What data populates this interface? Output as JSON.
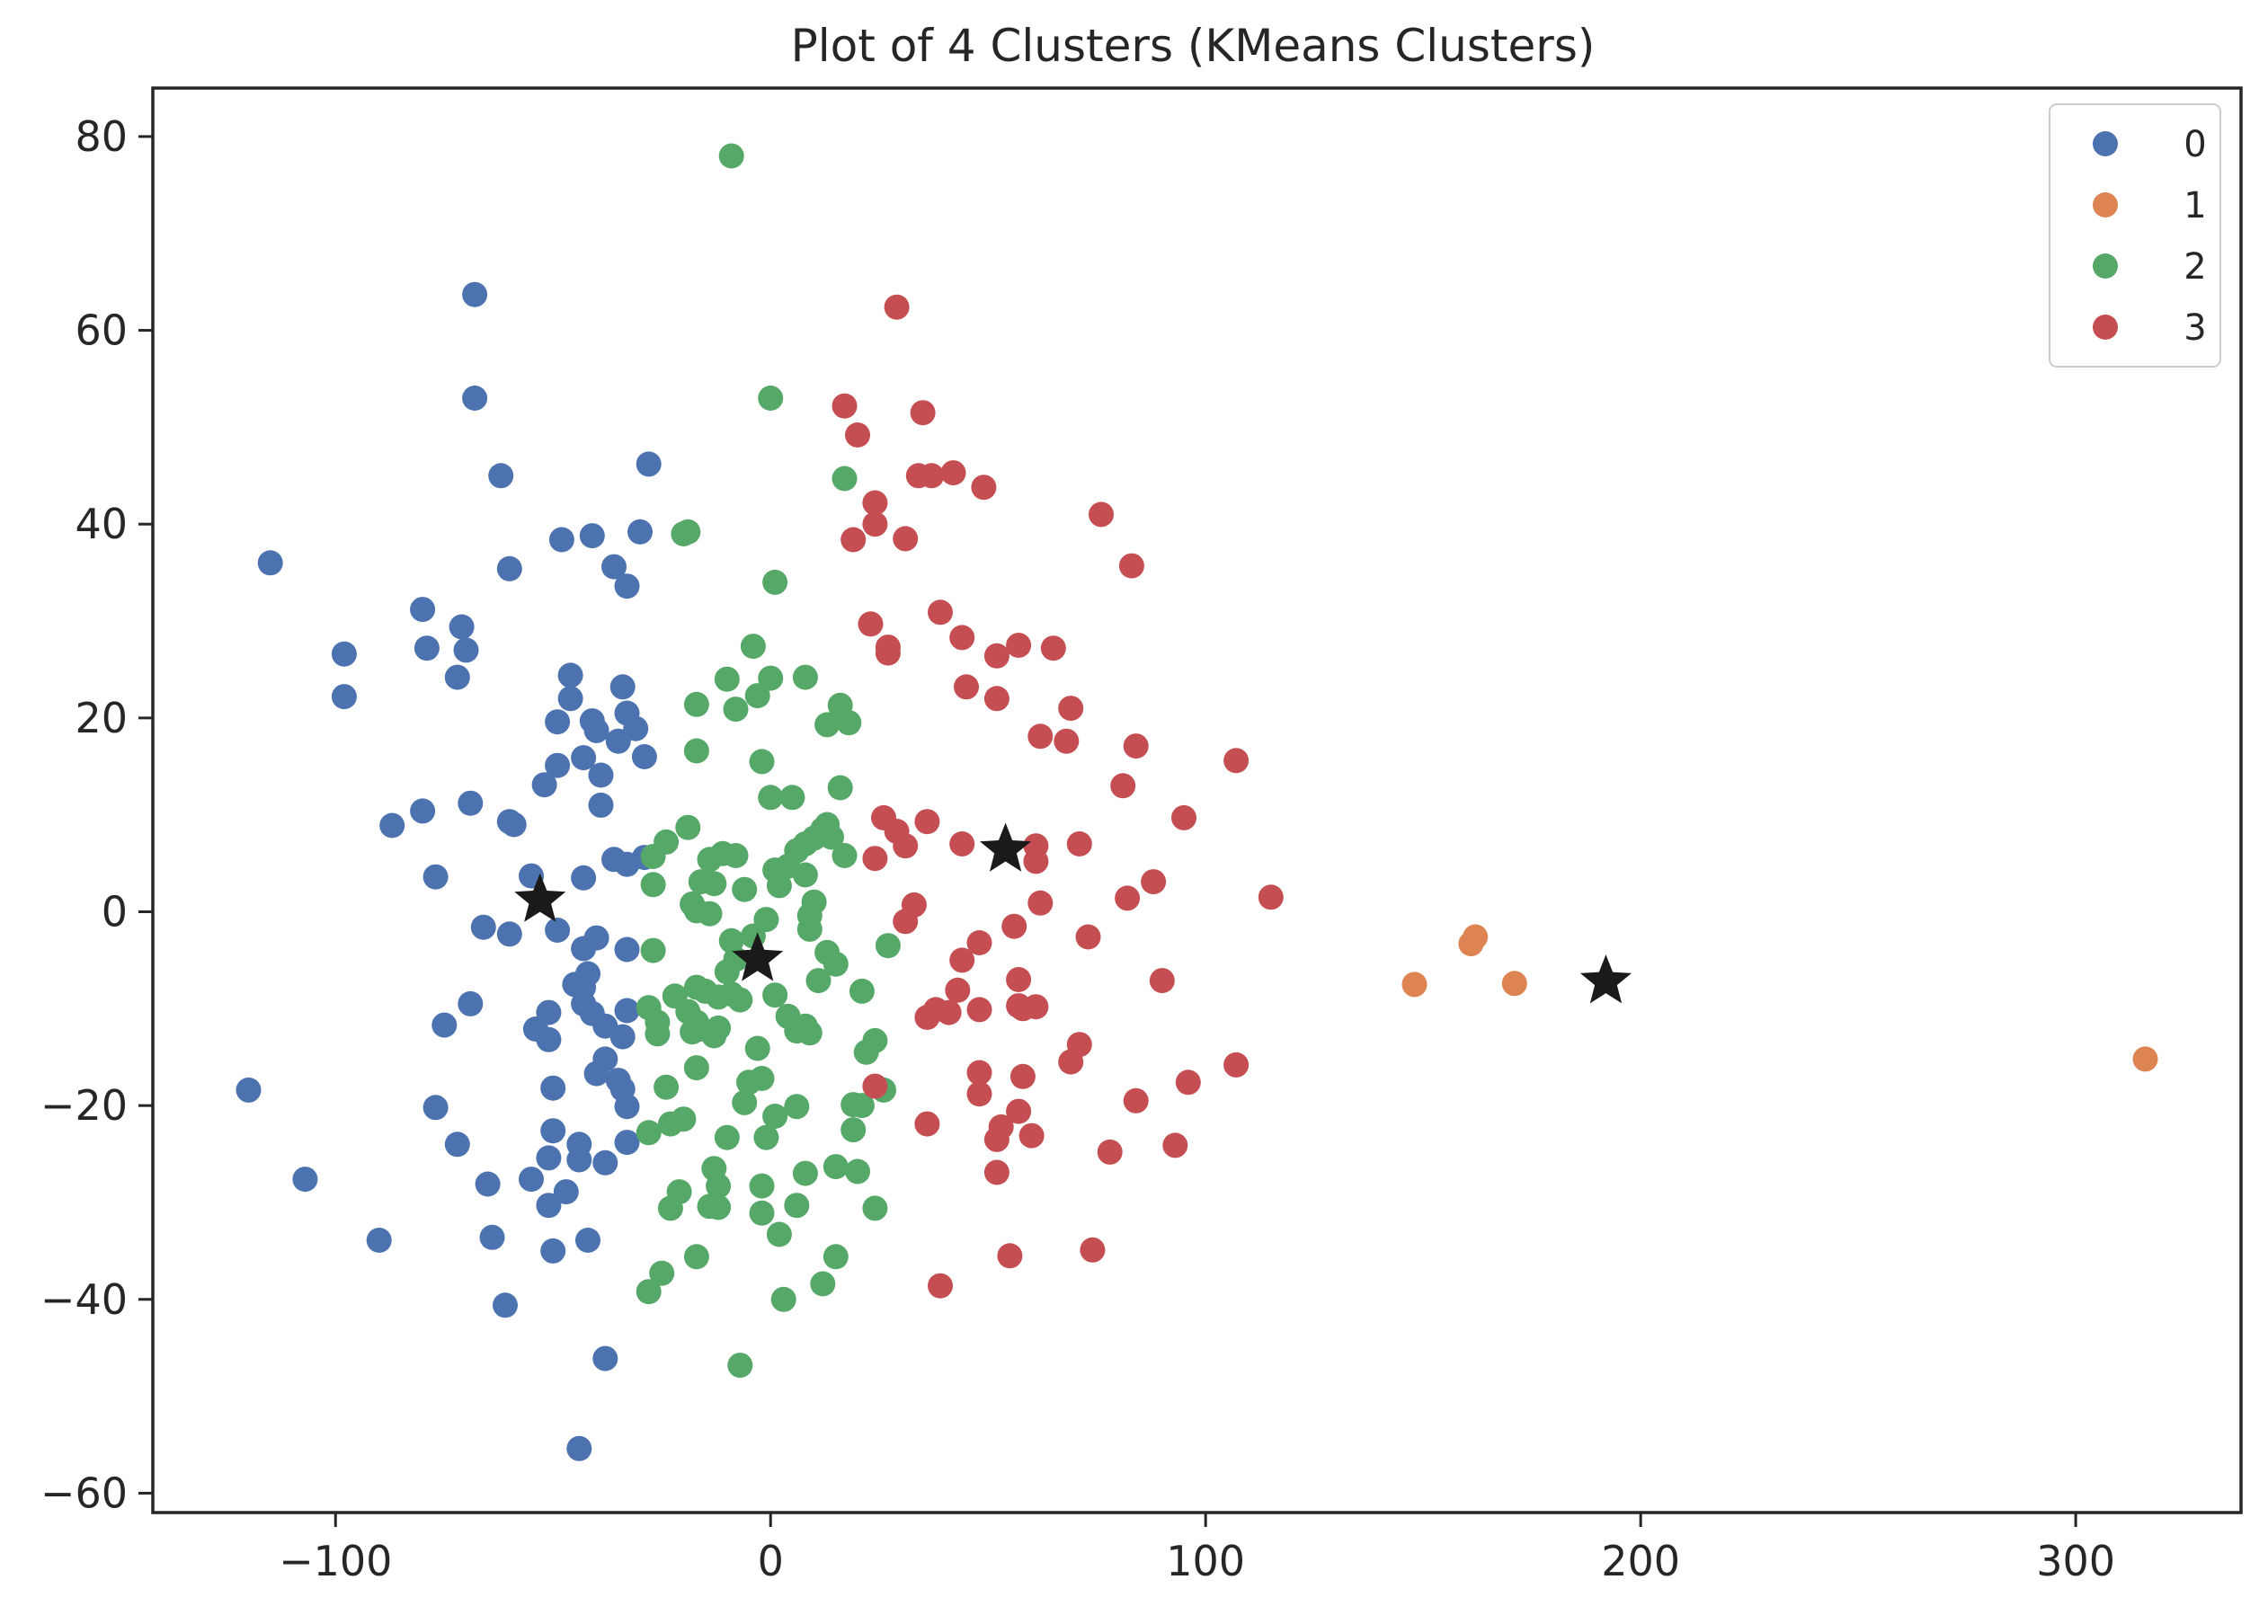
{
  "chart_data": {
    "type": "scatter",
    "title": "Plot of 4 Clusters (KMeans Clusters)",
    "xlabel": "",
    "ylabel": "",
    "xlim": [
      -142,
      338
    ],
    "ylim": [
      -62,
      85
    ],
    "xticks": [
      -100,
      0,
      100,
      200,
      300
    ],
    "yticks": [
      -60,
      -40,
      -20,
      0,
      20,
      40,
      60,
      80
    ],
    "xtick_labels": [
      "−100",
      "0",
      "100",
      "200",
      "300"
    ],
    "ytick_labels": [
      "−60",
      "−40",
      "−20",
      "0",
      "20",
      "40",
      "60",
      "80"
    ],
    "grid": false,
    "legend_position": "top-right",
    "series": [
      {
        "name": "0",
        "color": "#4c72b0",
        "points": [
          [
            -115,
            36
          ],
          [
            -68,
            63.7
          ],
          [
            -68,
            53
          ],
          [
            -62,
            45
          ],
          [
            -60,
            35.4
          ],
          [
            -48,
            38.4
          ],
          [
            -41,
            38.8
          ],
          [
            -36,
            35.6
          ],
          [
            -33,
            33.6
          ],
          [
            -30,
            39.2
          ],
          [
            -28,
            46.2
          ],
          [
            -80,
            31.2
          ],
          [
            -79,
            27.2
          ],
          [
            -71,
            29.4
          ],
          [
            -70,
            27.0
          ],
          [
            -72,
            24.2
          ],
          [
            -98,
            26.6
          ],
          [
            -98,
            22.2
          ],
          [
            -46,
            24.4
          ],
          [
            -46,
            22.0
          ],
          [
            -49,
            19.6
          ],
          [
            -41,
            19.7
          ],
          [
            -40,
            18.7
          ],
          [
            -34,
            23.2
          ],
          [
            -33,
            20.5
          ],
          [
            -31,
            18.9
          ],
          [
            -35,
            17.6
          ],
          [
            -43,
            15.9
          ],
          [
            -29,
            16.0
          ],
          [
            -39,
            14.1
          ],
          [
            -49,
            15.1
          ],
          [
            -52,
            13.1
          ],
          [
            -39,
            11.0
          ],
          [
            -69,
            11.2
          ],
          [
            -80,
            10.4
          ],
          [
            -87,
            8.9
          ],
          [
            -59,
            9.0
          ],
          [
            -60,
            9.3
          ],
          [
            -36,
            5.4
          ],
          [
            -33,
            4.9
          ],
          [
            -29,
            5.6
          ],
          [
            -55,
            3.7
          ],
          [
            -43,
            3.5
          ],
          [
            -77,
            3.6
          ],
          [
            -66,
            -1.6
          ],
          [
            -60,
            -2.3
          ],
          [
            -49,
            -1.9
          ],
          [
            -40,
            -2.7
          ],
          [
            -33,
            -3.9
          ],
          [
            -43,
            -3.8
          ],
          [
            -42,
            -6.4
          ],
          [
            -43,
            -7.8
          ],
          [
            -45,
            -7.5
          ],
          [
            -69,
            -9.5
          ],
          [
            -43,
            -9.5
          ],
          [
            -41,
            -10.5
          ],
          [
            -51,
            -10.4
          ],
          [
            -33,
            -10.2
          ],
          [
            -75,
            -11.7
          ],
          [
            -54,
            -12.1
          ],
          [
            -51,
            -13.2
          ],
          [
            -38,
            -11.8
          ],
          [
            -34,
            -12.9
          ],
          [
            -38,
            -15.2
          ],
          [
            -40,
            -16.7
          ],
          [
            -35,
            -17.4
          ],
          [
            -34,
            -18.3
          ],
          [
            -33,
            -20.1
          ],
          [
            -50,
            -18.2
          ],
          [
            -120,
            -18.4
          ],
          [
            -77,
            -20.2
          ],
          [
            -72,
            -24.0
          ],
          [
            -50,
            -22.6
          ],
          [
            -44,
            -24.0
          ],
          [
            -44,
            -25.6
          ],
          [
            -51,
            -25.4
          ],
          [
            -38,
            -25.9
          ],
          [
            -33,
            -23.8
          ],
          [
            -107,
            -27.6
          ],
          [
            -65,
            -28.1
          ],
          [
            -55,
            -27.6
          ],
          [
            -47,
            -28.9
          ],
          [
            -51,
            -30.3
          ],
          [
            -90,
            -33.9
          ],
          [
            -64,
            -33.6
          ],
          [
            -50,
            -35.0
          ],
          [
            -42,
            -33.9
          ],
          [
            -61,
            -40.6
          ],
          [
            -38,
            -46.1
          ],
          [
            -44,
            -55.4
          ]
        ]
      },
      {
        "name": "1",
        "color": "#dd8452",
        "points": [
          [
            148,
            -7.5
          ],
          [
            161,
            -3.3
          ],
          [
            162,
            -2.6
          ],
          [
            171,
            -7.4
          ],
          [
            316,
            -15.2
          ]
        ]
      },
      {
        "name": "2",
        "color": "#55a868",
        "points": [
          [
            -9,
            78
          ],
          [
            0,
            53
          ],
          [
            17,
            44.7
          ],
          [
            -20,
            39
          ],
          [
            -19,
            39.2
          ],
          [
            1,
            34
          ],
          [
            -4,
            27.4
          ],
          [
            -10,
            24
          ],
          [
            0,
            24.1
          ],
          [
            8,
            24.2
          ],
          [
            -8,
            20.9
          ],
          [
            -17,
            21.4
          ],
          [
            -3,
            22.3
          ],
          [
            13,
            19.3
          ],
          [
            16,
            21.3
          ],
          [
            18,
            19.5
          ],
          [
            -17,
            16.6
          ],
          [
            -2,
            15.5
          ],
          [
            0,
            11.8
          ],
          [
            5,
            11.8
          ],
          [
            16,
            12.8
          ],
          [
            -19,
            8.7
          ],
          [
            -24,
            7.2
          ],
          [
            -27,
            5.7
          ],
          [
            -11,
            6.0
          ],
          [
            -8,
            5.8
          ],
          [
            -14,
            5.4
          ],
          [
            -16,
            3.1
          ],
          [
            -13,
            2.9
          ],
          [
            -27,
            2.8
          ],
          [
            -6,
            2.3
          ],
          [
            1,
            4.3
          ],
          [
            4,
            4.7
          ],
          [
            6,
            6.3
          ],
          [
            8,
            7.0
          ],
          [
            10,
            7.6
          ],
          [
            12,
            8.5
          ],
          [
            13,
            9.0
          ],
          [
            14,
            7.7
          ],
          [
            17,
            5.8
          ],
          [
            8,
            3.8
          ],
          [
            2,
            2.7
          ],
          [
            -18,
            0.8
          ],
          [
            -17,
            0.1
          ],
          [
            -14,
            -0.2
          ],
          [
            10,
            1.0
          ],
          [
            9,
            -0.4
          ],
          [
            -1,
            -0.8
          ],
          [
            9,
            -1.8
          ],
          [
            -4,
            -2.5
          ],
          [
            13,
            -4.2
          ],
          [
            -9,
            -3.0
          ],
          [
            -27,
            -4.0
          ],
          [
            15,
            -5.4
          ],
          [
            27,
            -3.5
          ],
          [
            -8,
            -4.9
          ],
          [
            -10,
            -6.2
          ],
          [
            11,
            -7.1
          ],
          [
            -17,
            -7.8
          ],
          [
            -15,
            -8.2
          ],
          [
            -12,
            -8.8
          ],
          [
            -9,
            -8.5
          ],
          [
            -22,
            -8.7
          ],
          [
            1,
            -8.6
          ],
          [
            21,
            -8.2
          ],
          [
            -28,
            -9.9
          ],
          [
            -19,
            -10.3
          ],
          [
            -17,
            -11.4
          ],
          [
            -16,
            -12.1
          ],
          [
            -12,
            -12.0
          ],
          [
            -13,
            -12.8
          ],
          [
            -18,
            -12.4
          ],
          [
            -26,
            -11.4
          ],
          [
            -26,
            -12.6
          ],
          [
            -7,
            -9.1
          ],
          [
            4,
            -10.8
          ],
          [
            7,
            -11.9
          ],
          [
            8,
            -11.8
          ],
          [
            9,
            -12.5
          ],
          [
            6,
            -12.3
          ],
          [
            24,
            -13.3
          ],
          [
            22,
            -14.5
          ],
          [
            -3,
            -14.1
          ],
          [
            -17,
            -16.1
          ],
          [
            -24,
            -18.1
          ],
          [
            -5,
            -17.6
          ],
          [
            -2,
            -17.2
          ],
          [
            26,
            -18.4
          ],
          [
            19,
            -19.9
          ],
          [
            21,
            -20.0
          ],
          [
            -6,
            -19.7
          ],
          [
            6,
            -20.1
          ],
          [
            1,
            -21.1
          ],
          [
            -23,
            -21.9
          ],
          [
            -20,
            -21.4
          ],
          [
            -10,
            -23.3
          ],
          [
            -28,
            -22.8
          ],
          [
            -1,
            -23.3
          ],
          [
            19,
            -22.5
          ],
          [
            -13,
            -26.5
          ],
          [
            8,
            -27.0
          ],
          [
            15,
            -26.3
          ],
          [
            20,
            -26.8
          ],
          [
            -12,
            -28.3
          ],
          [
            -2,
            -28.3
          ],
          [
            -21,
            -28.9
          ],
          [
            -12,
            -30.5
          ],
          [
            -14,
            -30.4
          ],
          [
            -23,
            -30.6
          ],
          [
            6,
            -30.3
          ],
          [
            -2,
            -31.1
          ],
          [
            24,
            -30.6
          ],
          [
            2,
            -33.3
          ],
          [
            -17,
            -35.6
          ],
          [
            15,
            -35.6
          ],
          [
            -25,
            -37.3
          ],
          [
            -28,
            -39.2
          ],
          [
            12,
            -38.4
          ],
          [
            3,
            -40.0
          ],
          [
            -7,
            -46.8
          ]
        ]
      },
      {
        "name": "3",
        "color": "#c44e52",
        "points": [
          [
            29,
            62.4
          ],
          [
            17,
            52.2
          ],
          [
            20,
            49.2
          ],
          [
            35,
            51.5
          ],
          [
            34,
            45
          ],
          [
            37,
            45
          ],
          [
            42,
            45.3
          ],
          [
            49,
            43.8
          ],
          [
            24,
            42.2
          ],
          [
            24,
            40.0
          ],
          [
            19,
            38.4
          ],
          [
            31,
            38.5
          ],
          [
            76,
            41.0
          ],
          [
            83,
            35.7
          ],
          [
            39,
            30.9
          ],
          [
            23,
            29.7
          ],
          [
            27,
            27.3
          ],
          [
            27,
            26.7
          ],
          [
            44,
            28.3
          ],
          [
            52,
            26.4
          ],
          [
            57,
            27.5
          ],
          [
            65,
            27.2
          ],
          [
            45,
            23.2
          ],
          [
            52,
            22.0
          ],
          [
            69,
            21.0
          ],
          [
            62,
            18.1
          ],
          [
            68,
            17.6
          ],
          [
            84,
            17.1
          ],
          [
            107,
            15.6
          ],
          [
            81,
            13.0
          ],
          [
            26,
            9.7
          ],
          [
            29,
            8.3
          ],
          [
            36,
            9.3
          ],
          [
            95,
            9.7
          ],
          [
            31,
            6.8
          ],
          [
            44,
            7.0
          ],
          [
            61,
            6.8
          ],
          [
            71,
            7.0
          ],
          [
            24,
            5.5
          ],
          [
            61,
            5.2
          ],
          [
            88,
            3.1
          ],
          [
            33,
            0.7
          ],
          [
            31,
            -1.0
          ],
          [
            62,
            0.9
          ],
          [
            82,
            1.4
          ],
          [
            115,
            1.5
          ],
          [
            56,
            -1.5
          ],
          [
            73,
            -2.6
          ],
          [
            48,
            -3.2
          ],
          [
            44,
            -5.0
          ],
          [
            57,
            -7.0
          ],
          [
            90,
            -7.1
          ],
          [
            43,
            -8.1
          ],
          [
            36,
            -10.9
          ],
          [
            38,
            -10.1
          ],
          [
            41,
            -10.4
          ],
          [
            48,
            -10.1
          ],
          [
            57,
            -9.7
          ],
          [
            58,
            -10.0
          ],
          [
            61,
            -9.8
          ],
          [
            71,
            -13.7
          ],
          [
            69,
            -15.5
          ],
          [
            107,
            -15.8
          ],
          [
            48,
            -16.6
          ],
          [
            58,
            -17.0
          ],
          [
            96,
            -17.6
          ],
          [
            24,
            -18.0
          ],
          [
            48,
            -18.8
          ],
          [
            84,
            -19.5
          ],
          [
            57,
            -20.6
          ],
          [
            36,
            -21.9
          ],
          [
            53,
            -22.2
          ],
          [
            52,
            -23.5
          ],
          [
            60,
            -23.1
          ],
          [
            78,
            -24.8
          ],
          [
            93,
            -24.1
          ],
          [
            52,
            -26.9
          ],
          [
            55,
            -35.5
          ],
          [
            74,
            -34.9
          ],
          [
            39,
            -38.6
          ]
        ]
      }
    ],
    "centroids": {
      "marker": "star",
      "color": "#1a1a1a",
      "points": [
        [
          -53,
          1.2
        ],
        [
          -3,
          -4.9
        ],
        [
          54,
          6.4
        ],
        [
          192,
          -7.2
        ]
      ]
    }
  }
}
